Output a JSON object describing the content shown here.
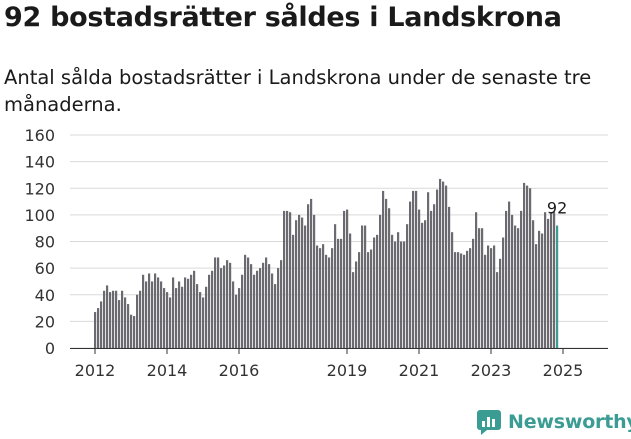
{
  "title": "92 bostadsrätter såldes i Landskrona",
  "subtitle": "Antal sålda bostadsrätter i Landskrona under de senaste tre månaderna.",
  "brand": {
    "name": "Newsworthy",
    "icon": "newsworthy-logo-icon",
    "color": "#3a9c93"
  },
  "chart_data": {
    "type": "bar",
    "title": "92 bostadsrätter såldes i Landskrona",
    "xlabel": "",
    "ylabel": "",
    "ylim": [
      0,
      160
    ],
    "yticks": [
      0,
      20,
      40,
      60,
      80,
      100,
      120,
      140,
      160
    ],
    "xticks": [
      {
        "label": "2012",
        "index": 0
      },
      {
        "label": "2014",
        "index": 24
      },
      {
        "label": "2016",
        "index": 48
      },
      {
        "label": "2019",
        "index": 84
      },
      {
        "label": "2021",
        "index": 108
      },
      {
        "label": "2023",
        "index": 132
      },
      {
        "label": "2025",
        "index": 156
      }
    ],
    "grid": true,
    "bar_color": "#6b6a70",
    "highlight_color": "#3a9c93",
    "highlight_label": "92",
    "start": "2012-01",
    "values": [
      27,
      30,
      35,
      43,
      47,
      42,
      43,
      43,
      36,
      43,
      38,
      33,
      25,
      24,
      40,
      43,
      55,
      50,
      56,
      50,
      56,
      53,
      50,
      45,
      42,
      38,
      53,
      45,
      50,
      46,
      53,
      52,
      55,
      58,
      48,
      42,
      38,
      46,
      55,
      58,
      68,
      68,
      60,
      62,
      66,
      64,
      50,
      40,
      45,
      55,
      70,
      68,
      63,
      55,
      58,
      60,
      64,
      68,
      63,
      56,
      48,
      60,
      66,
      103,
      103,
      102,
      85,
      96,
      100,
      98,
      92,
      108,
      112,
      100,
      77,
      75,
      78,
      70,
      68,
      75,
      93,
      82,
      82,
      103,
      104,
      86,
      57,
      65,
      72,
      92,
      92,
      72,
      74,
      83,
      85,
      100,
      118,
      112,
      105,
      85,
      80,
      87,
      80,
      80,
      93,
      110,
      118,
      118,
      104,
      94,
      96,
      117,
      103,
      108,
      119,
      127,
      125,
      122,
      106,
      87,
      72,
      72,
      71,
      70,
      73,
      75,
      82,
      102,
      90,
      90,
      70,
      77,
      75,
      77,
      57,
      67,
      83,
      103,
      110,
      100,
      92,
      90,
      103,
      124,
      122,
      120,
      96,
      78,
      88,
      86,
      102,
      97,
      102,
      102,
      92
    ]
  }
}
